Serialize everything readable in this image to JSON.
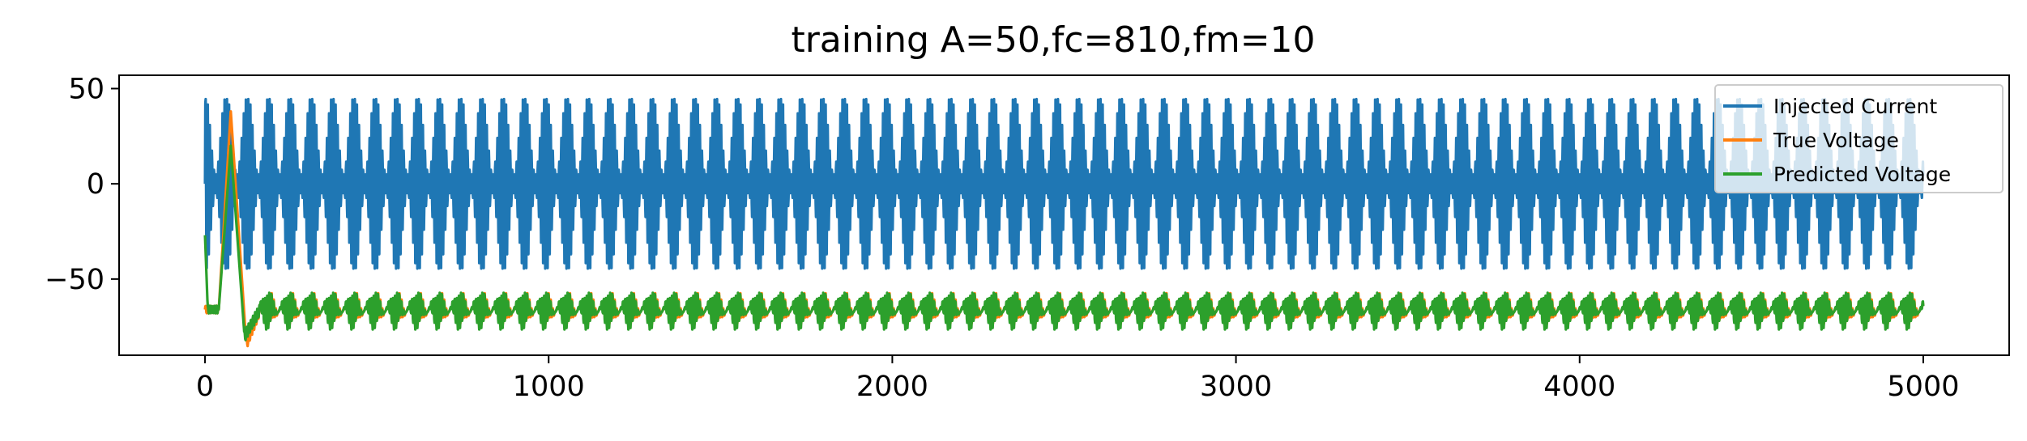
{
  "chart_data": {
    "type": "line",
    "title": "training A=50,fc=810,fm=10",
    "xlabel": "",
    "ylabel": "",
    "xlim": [
      -250,
      5250
    ],
    "ylim": [
      -90,
      57
    ],
    "xticks": [
      0,
      1000,
      2000,
      3000,
      4000,
      5000
    ],
    "yticks": [
      50,
      0,
      -50
    ],
    "xtick_labels": [
      "0",
      "1000",
      "2000",
      "3000",
      "4000",
      "5000"
    ],
    "ytick_labels": [
      "50",
      "0",
      "−50"
    ],
    "grid": false,
    "legend": {
      "location": "top-right"
    },
    "series": [
      {
        "name": "Injected Current",
        "color": "#1f77b4",
        "description_of_signal": "AM sinusoid, amplitude envelope up to 50, carrier fc=810, modulation fm=10, over samples 0–5000",
        "x_range": [
          0,
          5000
        ],
        "amplitude": 50,
        "offset": 0,
        "carrier_period_samples": 6.2,
        "modulation_period_samples": 62
      },
      {
        "name": "True Voltage",
        "color": "#ff7f0e",
        "x_range": [
          0,
          5000
        ],
        "baseline": -66,
        "oscillation_amplitude": 8,
        "initial_transient": {
          "peak": 38,
          "at_x": 75,
          "dip": -84,
          "dip_at_x": 120
        }
      },
      {
        "name": "Predicted Voltage",
        "color": "#2ca02c",
        "x_range": [
          0,
          5000
        ],
        "baseline": -66,
        "oscillation_amplitude": 9,
        "start_value": -27,
        "initial_transient": {
          "peak": 20,
          "at_x": 75,
          "dip": -80,
          "dip_at_x": 115
        }
      }
    ]
  }
}
